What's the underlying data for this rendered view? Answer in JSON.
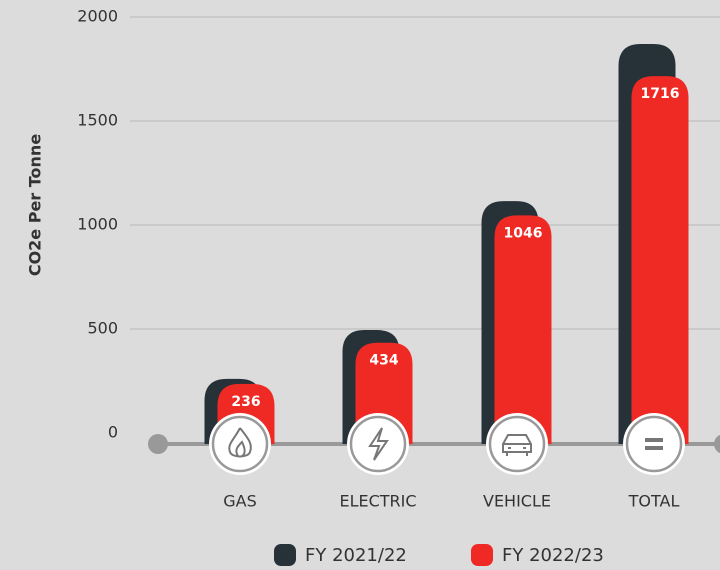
{
  "chart_data": {
    "type": "bar",
    "y_label": "CO2e Per Tonne",
    "categories": [
      "GAS",
      "ELECTRIC",
      "VEHICLE",
      "TOTAL"
    ],
    "series": [
      {
        "name": "FY 2021/22",
        "color": "#263238",
        "values": [
          260,
          495,
          1115,
          1870
        ]
      },
      {
        "name": "FY 2022/23",
        "color": "#ef2a24",
        "values": [
          236,
          434,
          1046,
          1716
        ]
      }
    ],
    "ylim": [
      0,
      2000
    ],
    "yticks": [
      0,
      500,
      1000,
      1500,
      2000
    ],
    "grid": true
  }
}
